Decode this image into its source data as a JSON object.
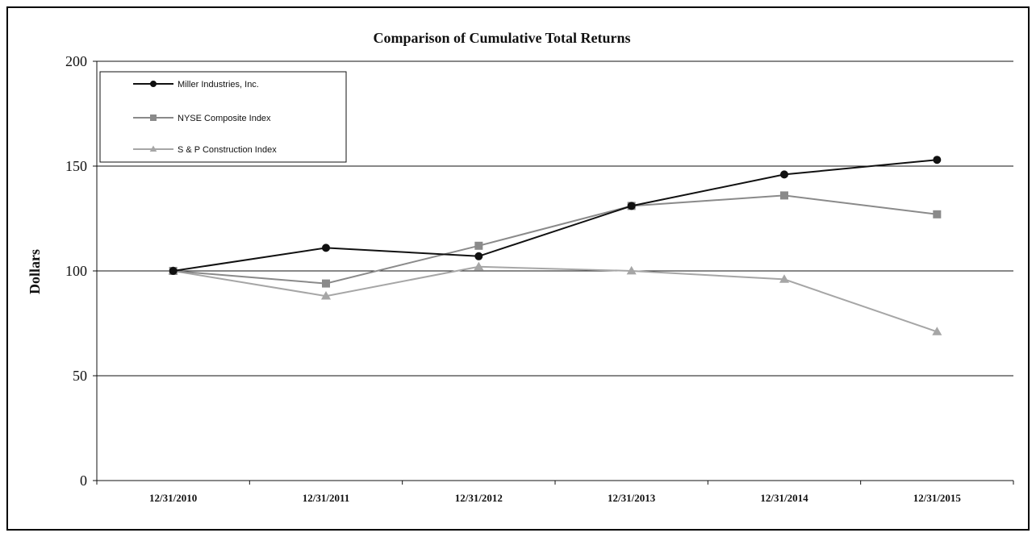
{
  "chart_data": {
    "type": "line",
    "title": "Comparison of Cumulative Total Returns",
    "xlabel": "",
    "ylabel": "Dollars",
    "categories": [
      "12/31/2010",
      "12/31/2011",
      "12/31/2012",
      "12/31/2013",
      "12/31/2014",
      "12/31/2015"
    ],
    "yticks": [
      0,
      50,
      100,
      150,
      200
    ],
    "ylim": [
      0,
      200
    ],
    "grid": "horizontal",
    "legend_position": "top-left",
    "series": [
      {
        "name": "Miller Industries, Inc.",
        "values": [
          100,
          111,
          107,
          131,
          146,
          153
        ],
        "color": "#111111",
        "marker": "circle"
      },
      {
        "name": "NYSE Composite Index",
        "values": [
          100,
          94,
          112,
          131,
          136,
          127
        ],
        "color": "#8a8a8a",
        "marker": "square"
      },
      {
        "name": "S & P Construction Index",
        "values": [
          100,
          88,
          102,
          100,
          96,
          71
        ],
        "color": "#a6a6a6",
        "marker": "triangle"
      }
    ]
  }
}
